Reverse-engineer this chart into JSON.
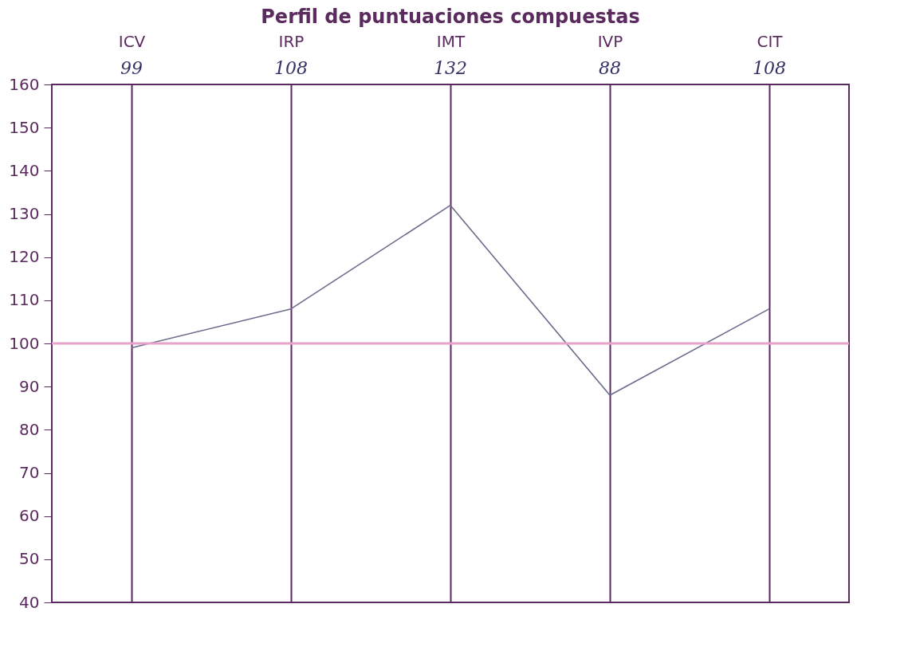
{
  "chart_data": {
    "type": "line",
    "title": "Perfil de puntuaciones compuestas",
    "categories": [
      "ICV",
      "IRP",
      "IMT",
      "IVP",
      "CIT"
    ],
    "series": [
      {
        "color": "#6b6b8c",
        "values": [
          99,
          108,
          132,
          88,
          108
        ]
      }
    ],
    "annotations": [
      "99",
      "108",
      "132",
      "88",
      "108"
    ],
    "ylim": [
      40,
      160
    ],
    "yticks": [
      40,
      50,
      60,
      70,
      80,
      90,
      100,
      110,
      120,
      130,
      140,
      150,
      160
    ],
    "grid": "x",
    "marker": "none",
    "line_style": "solid",
    "ref_lines": [
      {
        "axis": "y",
        "value": 100,
        "color": "#e7a3c9"
      }
    ]
  }
}
